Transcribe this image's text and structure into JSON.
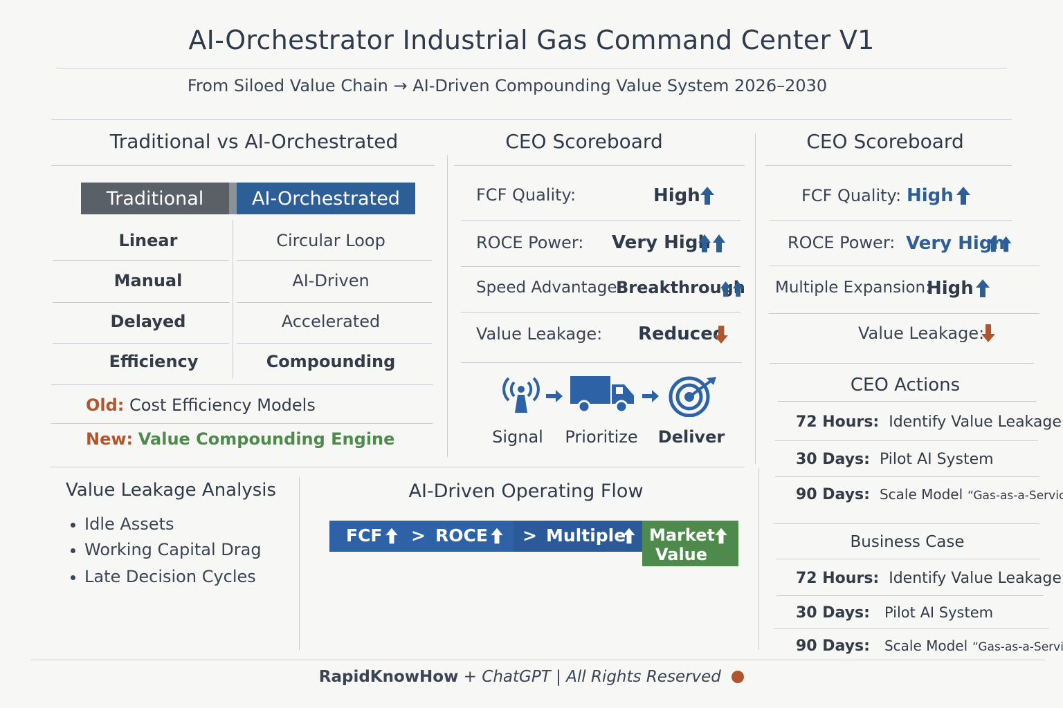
{
  "header": {
    "title": "AI-Orchestrator Industrial Gas Command Center V1",
    "subtitle": "From Siloed Value Chain → AI-Driven Compounding Value System 2026–2030"
  },
  "comparison": {
    "heading": "Traditional vs AI-Orchestrated",
    "col_traditional": "Traditional",
    "col_ai": "AI-Orchestrated",
    "rows": [
      {
        "traditional": "Linear",
        "ai": "Circular Loop"
      },
      {
        "traditional": "Manual",
        "ai": "AI-Driven"
      },
      {
        "traditional": "Delayed",
        "ai": "Accelerated"
      },
      {
        "traditional": "Efficiency",
        "ai": "Compounding"
      }
    ],
    "old_label": "Old:",
    "old_text": "Cost Efficiency Models",
    "new_label": "New:",
    "new_text": "Value Compounding Engine"
  },
  "scoreboard_mid": {
    "heading": "CEO Scoreboard",
    "rows": [
      {
        "label": "FCF Quality:",
        "value": "High",
        "trend": "up"
      },
      {
        "label": "ROCE Power:",
        "value": "Very High",
        "trend": "double-up"
      },
      {
        "label": "Speed Advantage·",
        "value": "Breakthrough",
        "trend": "double-up"
      },
      {
        "label": "Value Leakage:",
        "value": "Reduced",
        "trend": "down"
      }
    ],
    "process": [
      {
        "icon": "signal-icon",
        "label": "Signal"
      },
      {
        "icon": "truck-icon",
        "label": "Prioritize"
      },
      {
        "icon": "target-icon",
        "label": "Deliver"
      }
    ]
  },
  "scoreboard_right": {
    "heading": "CEO Scoreboard",
    "rows": [
      {
        "label": "FCF Quality:",
        "value": "High",
        "trend": "up"
      },
      {
        "label": "ROCE Power:",
        "value": "Very High",
        "trend": "double-up"
      },
      {
        "label": "Multiple Expansion:",
        "value": "High",
        "trend": "up"
      },
      {
        "label": "Value Leakage:",
        "value": "",
        "trend": "down"
      }
    ]
  },
  "ceo_actions": {
    "heading": "CEO Actions",
    "rows": [
      {
        "when": "72 Hours:",
        "what": "Identify Value Leakage"
      },
      {
        "when": "30 Days:",
        "what": "Pilot AI System"
      },
      {
        "when": "90 Days:",
        "what": "Scale Model",
        "quote": "“Gas-as-a-Service”"
      }
    ]
  },
  "business_case": {
    "heading": "Business Case",
    "rows": [
      {
        "when": "72 Hours:",
        "what": "Identify Value Leakage"
      },
      {
        "when": "30 Days:",
        "what": "Pilot AI System"
      },
      {
        "when": "90 Days:",
        "what": "Scale Model",
        "quote": "“Gas-as-a-Service”"
      }
    ]
  },
  "leakage": {
    "heading": "Value Leakage Analysis",
    "items": [
      "Idle Assets",
      "Working Capital Drag",
      "Late Decision Cycles"
    ]
  },
  "flow": {
    "heading": "AI-Driven Operating Flow",
    "steps": [
      "FCF",
      "ROCE",
      "Multiple"
    ],
    "separator": ">",
    "final_line1": "Market",
    "final_line2": "Value"
  },
  "footer": {
    "brand": "RapidKnowHow",
    "plus": "+",
    "partner": "ChatGPT",
    "sep": "|",
    "rights": "All Rights Reserved"
  },
  "colors": {
    "blue": "#2d5f96",
    "green": "#4f8a4d",
    "orange": "#b0562f",
    "gray": "#5a6068"
  }
}
